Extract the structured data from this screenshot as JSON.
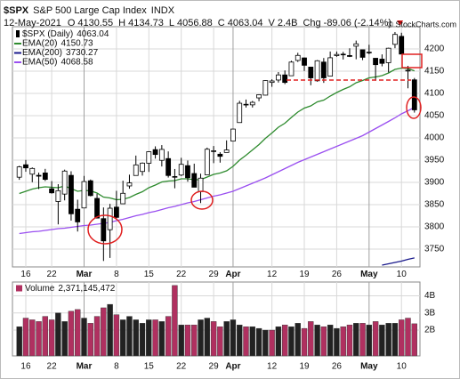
{
  "chart_data": {
    "type": "candlestick",
    "title": "$SPX",
    "subtitle": "S&P 500 Large Cap Index",
    "exchange": "INDX",
    "date": "12-May-2021",
    "quote": [
      {
        "label": "O",
        "value": 4130.55
      },
      {
        "label": "H",
        "value": 4134.73
      },
      {
        "label": "L",
        "value": 4056.88
      },
      {
        "label": "C",
        "value": 4063.04
      },
      {
        "label": "V",
        "value": {
          "value": 2400000000,
          "label": "2.4B"
        }
      },
      {
        "label": "Chg",
        "value": {
          "value": -89.06,
          "label": "-89.06 (-2.14%)"
        }
      }
    ],
    "credit": "© StockCharts.com",
    "price_legend": {
      "name": "$SPX (Daily)",
      "last": 4063.04
    },
    "categories": [
      null,
      "16",
      null,
      null,
      null,
      "22",
      null,
      null,
      null,
      null,
      "Mar",
      null,
      null,
      null,
      null,
      "8",
      null,
      null,
      null,
      null,
      "15",
      null,
      null,
      null,
      null,
      "22",
      null,
      null,
      null,
      null,
      "29",
      null,
      null,
      "Apr",
      null,
      null,
      null,
      null,
      null,
      "12",
      null,
      null,
      null,
      null,
      "19",
      null,
      null,
      null,
      null,
      "26",
      null,
      null,
      null,
      null,
      "May",
      null,
      null,
      null,
      null,
      "10",
      null,
      null
    ],
    "month_starts": [
      "Mar",
      "Apr",
      "May"
    ],
    "open": [
      3911.65,
      3939.61,
      3918.5,
      3915.86,
      3921.16,
      3885.55,
      3857.07,
      3873.71,
      3915.8,
      3839.66,
      3842.51,
      3903.64,
      3863.99,
      3818.53,
      3793.58,
      3844.39,
      3851.93,
      3891.99,
      3915.54,
      3924.52,
      3942.96,
      3973.59,
      3949.57,
      3953.5,
      3913.14,
      3916.48,
      3937.6,
      3919.93,
      3879.34,
      3917.12,
      3969.31,
      3963.34,
      3967.25,
      3992.78,
      4034.44,
      4075.57,
      4074.29,
      4089.95,
      4096.11,
      4124.71,
      4130.1,
      4141.58,
      4139.76,
      4174.14,
      4179.8,
      4159.18,
      4128.42,
      4170.46,
      4138.78,
      4185.03,
      4188.25,
      4185.14,
      4206.14,
      4198.1,
      4191.98,
      4179.04,
      4177.06,
      4169.14,
      4210.34,
      4228.29,
      4150.34,
      4130.55
    ],
    "high": [
      3937.23,
      3950.43,
      3933.61,
      3921.98,
      3930.41,
      3902.92,
      3895.98,
      3928.65,
      3925.02,
      3861.08,
      3914.5,
      3906.41,
      3874.47,
      3843.67,
      3851.69,
      3881.06,
      3903.76,
      3917.35,
      3960.27,
      3944.99,
      3970.08,
      3981.04,
      3983.87,
      3969.62,
      3930.12,
      3955.31,
      3949.13,
      3942.08,
      3919.54,
      3978.19,
      3981.83,
      3968.01,
      3994.41,
      4020.63,
      4083.42,
      4086.23,
      4083.13,
      4098.19,
      4129.48,
      4131.76,
      4148.0,
      4151.69,
      4173.49,
      4191.31,
      4180.81,
      4159.18,
      4175.02,
      4179.57,
      4194.17,
      4194.19,
      4193.35,
      4201.53,
      4218.78,
      4198.1,
      4209.39,
      4179.04,
      4187.72,
      4202.7,
      4238.04,
      4236.39,
      4162.04,
      4134.73
    ],
    "low": [
      3905.78,
      3923.85,
      3900.43,
      3885.03,
      3903.07,
      3874.71,
      3805.59,
      3859.6,
      3814.04,
      3789.54,
      3842.51,
      3868.57,
      3818.86,
      3723.34,
      3730.19,
      3819.25,
      3851.93,
      3885.73,
      3915.54,
      3915.21,
      3923.54,
      3953.44,
      3935.74,
      3910.86,
      3886.75,
      3914.16,
      3901.57,
      3889.07,
      3853.5,
      3917.12,
      3943.25,
      3944.35,
      3966.98,
      3992.78,
      4034.44,
      4068.14,
      4068.31,
      4082.54,
      4095.51,
      4114.82,
      4124.43,
      4120.87,
      4139.76,
      4170.75,
      4150.47,
      4118.38,
      4126.35,
      4123.69,
      4138.78,
      4182.36,
      4176.22,
      4181.78,
      4176.81,
      4174.85,
      4188.03,
      4128.59,
      4160.94,
      4147.33,
      4201.64,
      4188.13,
      4111.53,
      4056.88
    ],
    "close": [
      3934.83,
      3932.59,
      3931.33,
      3913.97,
      3906.71,
      3876.5,
      3881.37,
      3925.43,
      3829.34,
      3811.15,
      3901.82,
      3870.29,
      3819.72,
      3768.47,
      3841.94,
      3821.35,
      3875.44,
      3898.81,
      3939.34,
      3943.34,
      3968.94,
      3962.71,
      3974.12,
      3915.46,
      3913.1,
      3940.59,
      3910.52,
      3889.14,
      3909.52,
      3974.54,
      3971.09,
      3958.55,
      3972.89,
      4019.87,
      4077.91,
      4073.94,
      4079.95,
      4097.17,
      4128.8,
      4127.99,
      4141.59,
      4124.66,
      4170.42,
      4185.47,
      4163.26,
      4134.94,
      4173.42,
      4134.98,
      4180.17,
      4187.62,
      4186.72,
      4183.18,
      4211.47,
      4181.17,
      4192.66,
      4164.66,
      4167.59,
      4201.62,
      4232.6,
      4188.43,
      4152.1,
      4063.04
    ],
    "up_color": "#ffffff",
    "down_color": "#000000",
    "series": [
      {
        "name": "EMA(20)",
        "color": "#2e8b2e",
        "last": 4150.73,
        "values": [
          3875,
          3880,
          3885,
          3888,
          3890,
          3889,
          3888,
          3892,
          3886,
          3880,
          3882,
          3881,
          3876,
          3867,
          3865,
          3861,
          3862,
          3866,
          3873,
          3879,
          3888,
          3894,
          3901,
          3903,
          3904,
          3908,
          3908,
          3906,
          3906,
          3912,
          3918,
          3921,
          3926,
          3936,
          3950,
          3961,
          3973,
          3985,
          3999,
          4011,
          4024,
          4033,
          4046,
          4058,
          4067,
          4072,
          4081,
          4085,
          4094,
          4102,
          4109,
          4115,
          4124,
          4129,
          4135,
          4137,
          4140,
          4146,
          4154,
          4157,
          4156,
          4150.73
        ]
      },
      {
        "name": "EMA(200)",
        "color": "#1a1a8c",
        "last": 3730.27,
        "values": [
          null,
          null,
          null,
          null,
          null,
          null,
          null,
          null,
          null,
          null,
          null,
          null,
          null,
          null,
          null,
          null,
          null,
          null,
          null,
          null,
          null,
          null,
          null,
          null,
          null,
          null,
          null,
          null,
          null,
          null,
          null,
          null,
          null,
          null,
          null,
          null,
          null,
          null,
          null,
          null,
          null,
          null,
          null,
          null,
          null,
          null,
          null,
          null,
          null,
          null,
          null,
          null,
          null,
          null,
          null,
          null,
          3714,
          3717,
          3720,
          3723,
          3727,
          3730.27
        ]
      },
      {
        "name": "EMA(50)",
        "color": "#9a4ff0",
        "last": 4068.58,
        "values": [
          3785,
          3787,
          3789,
          3790,
          3792,
          3794,
          3796,
          3797,
          3799,
          3801,
          3803,
          3804,
          3806,
          3808,
          3810,
          3814,
          3817,
          3821,
          3825,
          3828,
          3832,
          3835,
          3839,
          3843,
          3846,
          3850,
          3854,
          3857,
          3861,
          3865,
          3869,
          3872,
          3876,
          3880,
          3886,
          3892,
          3898,
          3904,
          3910,
          3917,
          3924,
          3931,
          3938,
          3945,
          3951,
          3957,
          3963,
          3969,
          3975,
          3981,
          3987,
          3993,
          3999,
          4005,
          4013,
          4021,
          4029,
          4037,
          4045,
          4054,
          4061,
          4068.58
        ]
      }
    ],
    "ylim": [
      3710,
      4250
    ],
    "yticks": [
      3750,
      3800,
      3850,
      3900,
      3950,
      4000,
      4050,
      4100,
      4150,
      4200
    ],
    "grid": true,
    "volume": {
      "name": "Volume",
      "last": 2371145472,
      "last_label": "2,371,145,472",
      "up_color": "#222222",
      "down_color": "#b03060",
      "values": [
        2200000000,
        2700000000,
        2600000000,
        2500000000,
        2800000000,
        2600000000,
        3000000000,
        2500000000,
        3100000000,
        3200000000,
        2700000000,
        2400000000,
        2800000000,
        3300000000,
        3500000000,
        2900000000,
        2600000000,
        2800000000,
        2600000000,
        2400000000,
        2600000000,
        2600000000,
        2500000000,
        2800000000,
        4600000000,
        2300000000,
        2300000000,
        2300000000,
        2600000000,
        2700000000,
        2500000000,
        2200000000,
        2500000000,
        2600000000,
        2300000000,
        2200000000,
        2200000000,
        2100000000,
        2000000000,
        2000000000,
        2200000000,
        2300000000,
        2200000000,
        2400000000,
        2100000000,
        2500000000,
        2300000000,
        2200000000,
        2300000000,
        2100000000,
        2200000000,
        2300000000,
        2400000000,
        2400000000,
        2300000000,
        2500000000,
        2300000000,
        2400000000,
        2400000000,
        2600000000,
        2700000000,
        2371145472
      ],
      "ylim": [
        500000000,
        4800000000
      ],
      "yticks": [
        {
          "value": 2000000000,
          "label": "2B"
        },
        {
          "value": 3000000000,
          "label": "3B"
        },
        {
          "value": 4000000000,
          "label": "4B"
        }
      ]
    }
  }
}
